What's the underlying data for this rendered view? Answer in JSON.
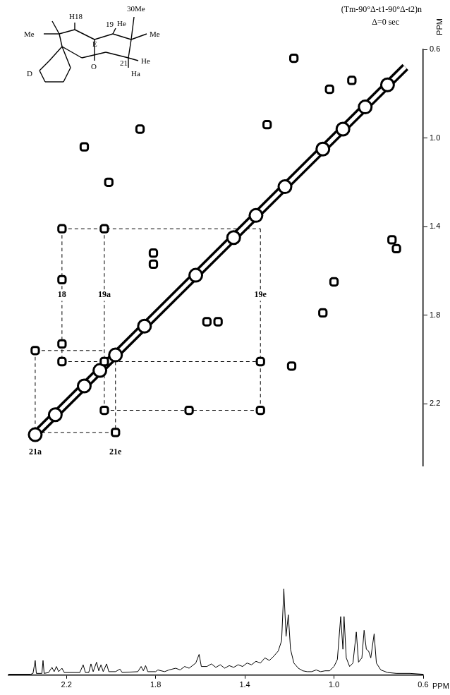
{
  "chart_data": [
    {
      "type": "scatter",
      "title": "(Tm-90°Δ-t1-90°Δ-t2)n",
      "subtitle": "Δ=0 sec",
      "y_axis_label": "PPM",
      "xlim": [
        0.6,
        2.46
      ],
      "ylim": [
        0.6,
        2.48
      ],
      "yticks": [
        0.6,
        {
          "value": 1.0,
          "label": "1.0"
        },
        1.4,
        1.8,
        2.2
      ],
      "grid": false,
      "tick_labels": "y",
      "color": "#000000",
      "diagonal": [
        [
          2.34,
          2.34
        ],
        [
          0.68,
          0.68
        ]
      ],
      "diagonal_peaks": [
        2.34,
        2.25,
        2.12,
        2.05,
        1.98,
        1.85,
        1.62,
        1.45,
        1.35,
        1.22,
        1.05,
        0.96,
        0.86,
        0.76
      ],
      "cross_peaks": [
        [
          2.22,
          1.41
        ],
        [
          2.03,
          1.41
        ],
        [
          2.22,
          1.64
        ],
        [
          1.81,
          1.52
        ],
        [
          1.81,
          1.57
        ],
        [
          1.57,
          1.83
        ],
        [
          1.52,
          1.83
        ],
        [
          2.01,
          1.2
        ],
        [
          2.12,
          1.04
        ],
        [
          1.87,
          0.96
        ],
        [
          1.3,
          0.94
        ],
        [
          1.18,
          0.64
        ],
        [
          1.02,
          0.78
        ],
        [
          0.92,
          0.74
        ],
        [
          0.74,
          1.46
        ],
        [
          0.72,
          1.5
        ],
        [
          1.0,
          1.65
        ],
        [
          1.05,
          1.79
        ],
        [
          1.19,
          2.03
        ],
        [
          1.33,
          2.01
        ],
        [
          1.33,
          2.23
        ],
        [
          2.34,
          1.96
        ],
        [
          2.22,
          2.01
        ],
        [
          2.22,
          1.93
        ],
        [
          2.03,
          2.23
        ],
        [
          1.98,
          2.33
        ],
        [
          1.65,
          2.23
        ],
        [
          2.03,
          2.01
        ]
      ],
      "connections": [
        [
          [
            2.22,
            1.41
          ],
          [
            1.33,
            1.41
          ]
        ],
        [
          [
            2.22,
            1.41
          ],
          [
            2.22,
            2.01
          ]
        ],
        [
          [
            2.03,
            1.41
          ],
          [
            2.03,
            2.23
          ]
        ],
        [
          [
            1.33,
            1.41
          ],
          [
            1.33,
            2.23
          ]
        ],
        [
          [
            2.03,
            2.23
          ],
          [
            1.33,
            2.23
          ]
        ],
        [
          [
            2.22,
            2.01
          ],
          [
            1.33,
            2.01
          ]
        ],
        [
          [
            2.34,
            2.33
          ],
          [
            1.98,
            2.33
          ]
        ],
        [
          [
            2.34,
            1.96
          ],
          [
            2.34,
            2.33
          ]
        ],
        [
          [
            1.98,
            2.01
          ],
          [
            1.98,
            2.33
          ]
        ],
        [
          [
            2.34,
            1.96
          ],
          [
            2.03,
            1.96
          ]
        ]
      ],
      "annotations": [
        {
          "text": "18",
          "x": 2.22,
          "y": 1.71
        },
        {
          "text": "19a",
          "x": 2.03,
          "y": 1.71
        },
        {
          "text": "19e",
          "x": 1.33,
          "y": 1.71
        },
        {
          "text": "21a",
          "x": 2.34,
          "y": 2.42
        },
        {
          "text": "21e",
          "x": 1.98,
          "y": 2.42
        }
      ]
    },
    {
      "type": "line",
      "x_axis_label": "PPM",
      "xlim": [
        0.6,
        2.46
      ],
      "xticks": [
        2.2,
        1.8,
        1.4,
        {
          "value": 1.0,
          "label": "1.0"
        },
        0.6
      ],
      "ylim": [
        0,
        135
      ],
      "grid": false,
      "tick_labels": "x",
      "color": "#000000",
      "x": [
        2.46,
        2.36,
        2.35,
        2.34,
        2.335,
        2.31,
        2.305,
        2.3,
        2.28,
        2.265,
        2.255,
        2.245,
        2.235,
        2.22,
        2.21,
        2.14,
        2.125,
        2.115,
        2.1,
        2.09,
        2.08,
        2.065,
        2.055,
        2.045,
        2.035,
        2.02,
        2.01,
        1.98,
        1.96,
        1.95,
        1.88,
        1.865,
        1.855,
        1.845,
        1.835,
        1.8,
        1.79,
        1.76,
        1.74,
        1.71,
        1.69,
        1.67,
        1.65,
        1.62,
        1.605,
        1.595,
        1.57,
        1.55,
        1.53,
        1.51,
        1.49,
        1.47,
        1.45,
        1.43,
        1.41,
        1.39,
        1.37,
        1.35,
        1.33,
        1.31,
        1.29,
        1.27,
        1.25,
        1.235,
        1.225,
        1.215,
        1.205,
        1.195,
        1.18,
        1.16,
        1.14,
        1.12,
        1.1,
        1.08,
        1.06,
        1.04,
        1.02,
        1.0,
        0.985,
        0.97,
        0.96,
        0.955,
        0.945,
        0.93,
        0.915,
        0.9,
        0.89,
        0.875,
        0.865,
        0.855,
        0.845,
        0.835,
        0.82,
        0.81,
        0.79,
        0.76,
        0.72,
        0.66,
        0.6
      ],
      "values": [
        1,
        1,
        2,
        17,
        2,
        2,
        17,
        2,
        3,
        9,
        4,
        10,
        4,
        8,
        3,
        3,
        12,
        3,
        3,
        13,
        4,
        15,
        5,
        12,
        4,
        13,
        4,
        4,
        7,
        3,
        4,
        10,
        5,
        11,
        4,
        4,
        6,
        4,
        6,
        8,
        6,
        10,
        8,
        14,
        24,
        10,
        10,
        13,
        9,
        12,
        8,
        11,
        9,
        12,
        10,
        14,
        12,
        16,
        14,
        20,
        17,
        22,
        28,
        40,
        100,
        45,
        70,
        30,
        14,
        8,
        5,
        4,
        4,
        6,
        4,
        5,
        5,
        10,
        18,
        68,
        30,
        68,
        20,
        10,
        14,
        50,
        15,
        20,
        52,
        30,
        28,
        20,
        48,
        14,
        6,
        3,
        2,
        2,
        1
      ]
    }
  ],
  "structure": {
    "labels": [
      "Me",
      "H18",
      "30Me",
      "19",
      "He",
      "Me",
      "E",
      "O",
      "21",
      "He",
      "Ha",
      "D"
    ]
  }
}
